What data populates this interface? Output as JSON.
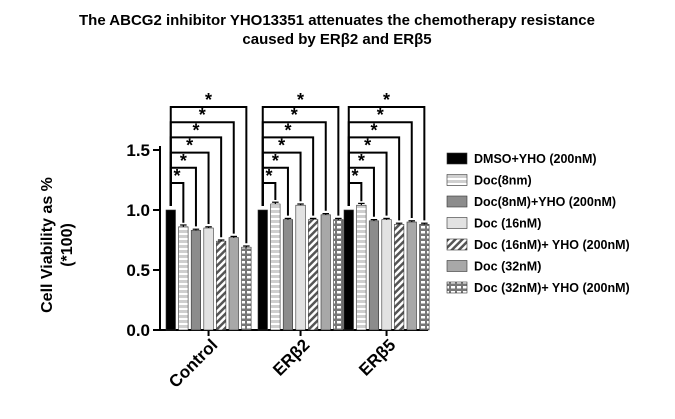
{
  "chart_data": {
    "type": "bar",
    "title_lines": [
      "The ABCG2 inhibitor YHO13351 attenuates the chemotherapy resistance",
      "caused by ERβ2 and ERβ5"
    ],
    "ylabel_lines": [
      "Cell Viability as %",
      "(*100)"
    ],
    "xlabel": "",
    "categories": [
      "Control",
      "ERβ2",
      "ERβ5"
    ],
    "ylim": [
      0,
      1.5
    ],
    "yticks": [
      "0.0",
      "0.5",
      "1.0",
      "1.5"
    ],
    "significance_marker": "*",
    "grid": false,
    "legend_position": "right",
    "series": [
      {
        "name": "DMSO+YHO (200nM)",
        "values": [
          1.0,
          1.0,
          1.0
        ],
        "errors": [
          0.0,
          0.0,
          0.0
        ],
        "pattern": "solid-black"
      },
      {
        "name": "Doc(8nm)",
        "values": [
          0.86,
          1.05,
          1.04
        ],
        "errors": [
          0.015,
          0.015,
          0.015
        ],
        "pattern": "light-lines"
      },
      {
        "name": "Doc(8nM)+YHO (200nM)",
        "values": [
          0.83,
          0.92,
          0.91
        ],
        "errors": [
          0.01,
          0.01,
          0.01
        ],
        "pattern": "solid-mid"
      },
      {
        "name": "Doc (16nM)",
        "values": [
          0.85,
          1.04,
          0.92
        ],
        "errors": [
          0.01,
          0.01,
          0.01
        ],
        "pattern": "solid-light"
      },
      {
        "name": "Doc (16nM)+ YHO (200nM)",
        "values": [
          0.74,
          0.92,
          0.88
        ],
        "errors": [
          0.01,
          0.01,
          0.01
        ],
        "pattern": "diagonal"
      },
      {
        "name": "Doc (32nM)",
        "values": [
          0.77,
          0.96,
          0.9
        ],
        "errors": [
          0.01,
          0.01,
          0.01
        ],
        "pattern": "solid-gray"
      },
      {
        "name": "Doc (32nM)+ YHO (200nM)",
        "values": [
          0.69,
          0.92,
          0.88
        ],
        "errors": [
          0.01,
          0.01,
          0.01
        ],
        "pattern": "grid"
      }
    ]
  }
}
